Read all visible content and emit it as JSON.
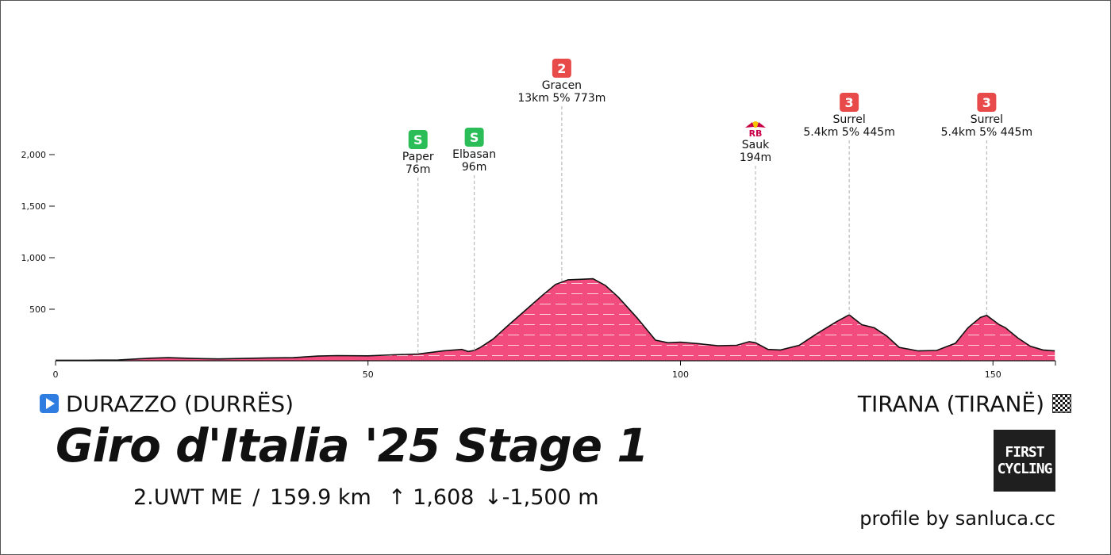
{
  "start": {
    "name": "DURAZZO (DURRËS)"
  },
  "finish": {
    "name": "TIRANA (TIRANË)"
  },
  "title": "Giro d'Italia '25 Stage 1",
  "stats": {
    "category": "2.UWT ME",
    "separator": "/",
    "distance": "159.9 km",
    "ascent": "↑ 1,608",
    "descent": "↓-1,500 m"
  },
  "credit": "profile by sanluca.cc",
  "logo": {
    "line1": "FIRST",
    "line2": "CYCLING"
  },
  "colors": {
    "profile_fill": "#f24b7d",
    "profile_stroke": "#111111",
    "sprint_badge": "#2bbd57",
    "kom_badge": "#e84a4a",
    "redbull_text": "#c8004a"
  },
  "chart_data": {
    "type": "area",
    "title": "",
    "xlabel": "",
    "ylabel": "",
    "xlim": [
      0,
      160
    ],
    "ylim": [
      0,
      2200
    ],
    "x_ticks": [
      0,
      50,
      100,
      150
    ],
    "x_tick_labels": [
      "0",
      "50",
      "100",
      "150"
    ],
    "y_ticks": [
      500,
      1000,
      1500,
      2000
    ],
    "y_tick_labels": [
      "500",
      "1,000",
      "1,500",
      "2,000"
    ],
    "grid": false,
    "profile": [
      [
        0,
        5
      ],
      [
        5,
        5
      ],
      [
        10,
        8
      ],
      [
        15,
        25
      ],
      [
        18,
        30
      ],
      [
        22,
        22
      ],
      [
        26,
        18
      ],
      [
        30,
        22
      ],
      [
        34,
        28
      ],
      [
        38,
        30
      ],
      [
        42,
        45
      ],
      [
        45,
        50
      ],
      [
        50,
        48
      ],
      [
        54,
        58
      ],
      [
        58,
        65
      ],
      [
        62,
        95
      ],
      [
        65,
        110
      ],
      [
        66,
        90
      ],
      [
        67,
        100
      ],
      [
        68,
        130
      ],
      [
        70,
        210
      ],
      [
        72,
        320
      ],
      [
        75,
        480
      ],
      [
        78,
        640
      ],
      [
        80,
        740
      ],
      [
        82,
        785
      ],
      [
        84,
        790
      ],
      [
        86,
        795
      ],
      [
        88,
        730
      ],
      [
        90,
        620
      ],
      [
        93,
        420
      ],
      [
        96,
        200
      ],
      [
        98,
        175
      ],
      [
        100,
        180
      ],
      [
        103,
        165
      ],
      [
        106,
        145
      ],
      [
        109,
        150
      ],
      [
        111,
        185
      ],
      [
        112,
        175
      ],
      [
        114,
        110
      ],
      [
        116,
        105
      ],
      [
        119,
        150
      ],
      [
        122,
        270
      ],
      [
        125,
        380
      ],
      [
        127,
        445
      ],
      [
        129,
        350
      ],
      [
        131,
        320
      ],
      [
        133,
        240
      ],
      [
        135,
        130
      ],
      [
        138,
        95
      ],
      [
        141,
        100
      ],
      [
        144,
        170
      ],
      [
        146,
        320
      ],
      [
        148,
        420
      ],
      [
        149,
        440
      ],
      [
        151,
        350
      ],
      [
        152,
        320
      ],
      [
        154,
        220
      ],
      [
        156,
        140
      ],
      [
        158,
        105
      ],
      [
        159.9,
        95
      ]
    ],
    "points": [
      {
        "type": "sprint",
        "badge": "S",
        "name": "Paper",
        "detail": "76m",
        "km": 58,
        "elevation": 76
      },
      {
        "type": "sprint",
        "badge": "S",
        "name": "Elbasan",
        "detail": "96m",
        "km": 67,
        "elevation": 96
      },
      {
        "type": "kom",
        "badge": "2",
        "name": "Gracen",
        "detail": "13km 5% 773m",
        "km": 81,
        "elevation": 773
      },
      {
        "type": "redbull",
        "badge": "RB",
        "name": "Sauk",
        "detail": "194m",
        "km": 112,
        "elevation": 194
      },
      {
        "type": "kom",
        "badge": "3",
        "name": "Surrel",
        "detail": "5.4km 5% 445m",
        "km": 127,
        "elevation": 445
      },
      {
        "type": "kom",
        "badge": "3",
        "name": "Surrel",
        "detail": "5.4km 5% 445m",
        "km": 149,
        "elevation": 445
      }
    ]
  }
}
